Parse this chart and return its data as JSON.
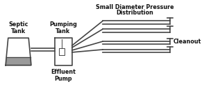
{
  "bg_color": "#ffffff",
  "line_color": "#444444",
  "dark_color": "#111111",
  "fill_color": "#888888",
  "title_line1": "Small Diameter Pressure",
  "title_line2": "Distribution",
  "label_septic": "Septic\nTank",
  "label_pumping": "Pumping\nTank",
  "label_effluent": "Effluent\nPump",
  "label_cleanout": "Cleanout",
  "lw": 1.2,
  "fontsize": 5.8
}
